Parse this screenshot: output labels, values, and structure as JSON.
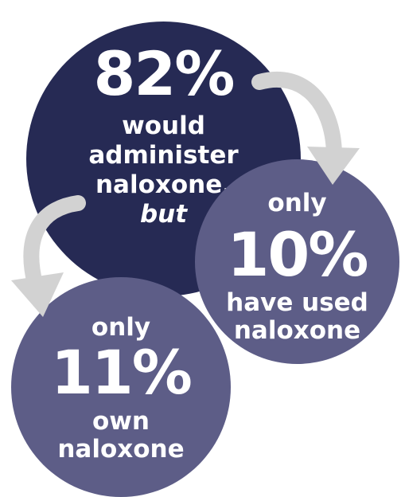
{
  "colors": {
    "primary_circle": "#262a54",
    "secondary_circle": "#5d5d87",
    "arrow": "#d2d2d2",
    "text": "#ffffff"
  },
  "circles": [
    {
      "id": "administer",
      "percent": "82%",
      "lines": [
        "would",
        "administer",
        "naloxone,",
        "but"
      ]
    },
    {
      "id": "used",
      "pre": "only",
      "percent": "10%",
      "lines": [
        "have used",
        "naloxone"
      ]
    },
    {
      "id": "own",
      "pre": "only",
      "percent": "11%",
      "lines": [
        "own",
        "naloxone"
      ]
    }
  ]
}
